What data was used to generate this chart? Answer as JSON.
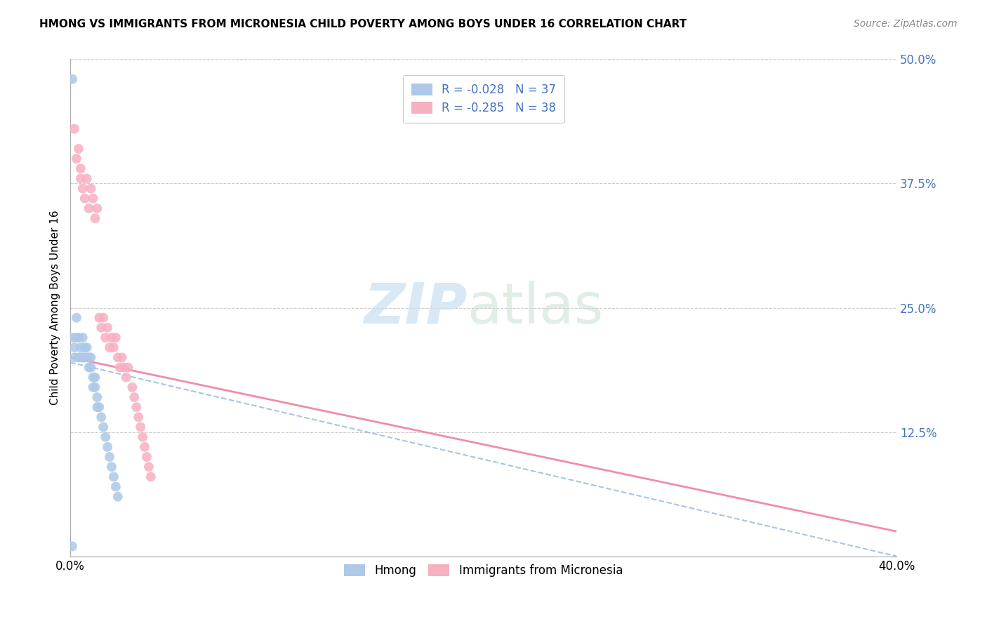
{
  "title": "HMONG VS IMMIGRANTS FROM MICRONESIA CHILD POVERTY AMONG BOYS UNDER 16 CORRELATION CHART",
  "source": "Source: ZipAtlas.com",
  "ylabel": "Child Poverty Among Boys Under 16",
  "xlim": [
    0,
    0.4
  ],
  "ylim": [
    0,
    0.5
  ],
  "yticks": [
    0.0,
    0.125,
    0.25,
    0.375,
    0.5
  ],
  "ytick_labels": [
    "",
    "12.5%",
    "25.0%",
    "37.5%",
    "50.0%"
  ],
  "series1_color": "#adc8e8",
  "series2_color": "#f7b0c0",
  "line1_color": "#99bbdd",
  "line2_color": "#f080a0",
  "hmong_x": [
    0.001,
    0.001,
    0.002,
    0.002,
    0.003,
    0.003,
    0.004,
    0.004,
    0.005,
    0.005,
    0.006,
    0.006,
    0.007,
    0.007,
    0.008,
    0.008,
    0.009,
    0.009,
    0.01,
    0.01,
    0.011,
    0.011,
    0.012,
    0.012,
    0.013,
    0.013,
    0.014,
    0.015,
    0.016,
    0.017,
    0.018,
    0.019,
    0.02,
    0.021,
    0.022,
    0.023,
    0.001
  ],
  "hmong_y": [
    0.48,
    0.22,
    0.21,
    0.2,
    0.22,
    0.24,
    0.2,
    0.22,
    0.21,
    0.2,
    0.22,
    0.2,
    0.21,
    0.2,
    0.2,
    0.21,
    0.19,
    0.2,
    0.19,
    0.2,
    0.18,
    0.17,
    0.18,
    0.17,
    0.16,
    0.15,
    0.15,
    0.14,
    0.13,
    0.12,
    0.11,
    0.1,
    0.09,
    0.08,
    0.07,
    0.06,
    0.01
  ],
  "micro_x": [
    0.002,
    0.003,
    0.004,
    0.005,
    0.005,
    0.006,
    0.007,
    0.008,
    0.009,
    0.01,
    0.011,
    0.012,
    0.013,
    0.014,
    0.015,
    0.016,
    0.017,
    0.018,
    0.019,
    0.02,
    0.021,
    0.022,
    0.023,
    0.024,
    0.025,
    0.026,
    0.027,
    0.028,
    0.03,
    0.031,
    0.032,
    0.033,
    0.034,
    0.035,
    0.036,
    0.037,
    0.038,
    0.039
  ],
  "micro_y": [
    0.43,
    0.4,
    0.41,
    0.39,
    0.38,
    0.37,
    0.36,
    0.38,
    0.35,
    0.37,
    0.36,
    0.34,
    0.35,
    0.24,
    0.23,
    0.24,
    0.22,
    0.23,
    0.21,
    0.22,
    0.21,
    0.22,
    0.2,
    0.19,
    0.2,
    0.19,
    0.18,
    0.19,
    0.17,
    0.16,
    0.15,
    0.14,
    0.13,
    0.12,
    0.11,
    0.1,
    0.09,
    0.08
  ],
  "line1_x0": 0.0,
  "line1_x1": 0.4,
  "line1_y0": 0.195,
  "line1_y1": 0.0,
  "line2_x0": 0.0,
  "line2_x1": 0.4,
  "line2_y0": 0.2,
  "line2_y1": 0.025
}
